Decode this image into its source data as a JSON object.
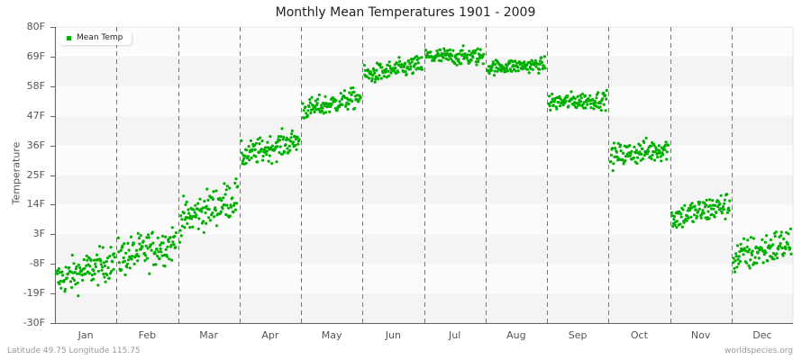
{
  "chart_data": {
    "type": "scatter",
    "title": "Monthly Mean Temperatures 1901 - 2009",
    "xlabel": "",
    "ylabel": "Temperature",
    "ylim": [
      -30,
      80
    ],
    "yticks": [
      "80F",
      "69F",
      "58F",
      "47F",
      "36F",
      "25F",
      "14F",
      "3F",
      "-8F",
      "-19F",
      "-30F"
    ],
    "ytick_values": [
      80,
      69,
      58,
      47,
      36,
      25,
      14,
      3,
      -8,
      -19,
      -30
    ],
    "categories": [
      "Jan",
      "Feb",
      "Mar",
      "Apr",
      "May",
      "Jun",
      "Jul",
      "Aug",
      "Sep",
      "Oct",
      "Nov",
      "Dec"
    ],
    "legend": {
      "position": "top-left",
      "entries": [
        "Mean Temp"
      ]
    },
    "grid": {
      "horizontal_bands": true,
      "vertical_dashed_month_dividers": true
    },
    "series": [
      {
        "name": "Mean Temp",
        "color": "#00b000",
        "points_per_month": 109,
        "monthly_stats": [
          {
            "month": "Jan",
            "mean": -11,
            "min": -22,
            "max": 0,
            "trend_start": -14,
            "trend_end": -7
          },
          {
            "month": "Feb",
            "mean": -4,
            "min": -17,
            "max": 7,
            "trend_start": -6,
            "trend_end": 0
          },
          {
            "month": "Mar",
            "mean": 12,
            "min": 0,
            "max": 24,
            "trend_start": 8,
            "trend_end": 17
          },
          {
            "month": "Apr",
            "mean": 35,
            "min": 28,
            "max": 44,
            "trend_start": 32,
            "trend_end": 38
          },
          {
            "month": "May",
            "mean": 51,
            "min": 45,
            "max": 58,
            "trend_start": 49,
            "trend_end": 54
          },
          {
            "month": "Jun",
            "mean": 63,
            "min": 58,
            "max": 70,
            "trend_start": 62,
            "trend_end": 66
          },
          {
            "month": "Jul",
            "mean": 69,
            "min": 64,
            "max": 75,
            "trend_start": 69,
            "trend_end": 69
          },
          {
            "month": "Aug",
            "mean": 65,
            "min": 61,
            "max": 70,
            "trend_start": 65,
            "trend_end": 66
          },
          {
            "month": "Sep",
            "mean": 52,
            "min": 46,
            "max": 57,
            "trend_start": 52,
            "trend_end": 53
          },
          {
            "month": "Oct",
            "mean": 34,
            "min": 26,
            "max": 41,
            "trend_start": 32,
            "trend_end": 35
          },
          {
            "month": "Nov",
            "mean": 11,
            "min": 3,
            "max": 20,
            "trend_start": 9,
            "trend_end": 14
          },
          {
            "month": "Dec",
            "mean": -3,
            "min": -17,
            "max": 5,
            "trend_start": -6,
            "trend_end": 0
          }
        ]
      }
    ]
  },
  "footer": {
    "location": "Latitude 49.75 Longitude 115.75",
    "credit": "worldspecies.org"
  },
  "colors": {
    "point": "#00b000",
    "band_light": "#fcfcfc",
    "band_dark": "#f4f4f4",
    "divider": "#777777",
    "axis": "#666666"
  }
}
